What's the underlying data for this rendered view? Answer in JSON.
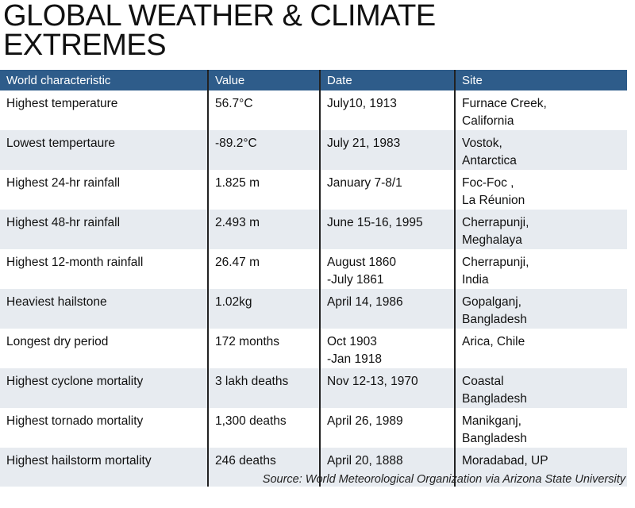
{
  "title": {
    "line1": "GLOBAL WEATHER & CLIMATE",
    "line2": "EXTREMES"
  },
  "table": {
    "headers": [
      "World characteristic",
      "Value",
      "Date",
      "Site"
    ],
    "rows": [
      {
        "characteristic": "Highest temperature",
        "value": "56.7°C",
        "date": [
          "July10, 1913"
        ],
        "site": [
          "Furnace Creek,",
          "California"
        ]
      },
      {
        "characteristic": "Lowest tempertaure",
        "value": "-89.2°C",
        "date": [
          "July 21, 1983"
        ],
        "site": [
          "Vostok,",
          "Antarctica"
        ]
      },
      {
        "characteristic": "Highest 24-hr rainfall",
        "value": "1.825 m",
        "date": [
          "January 7-8/1"
        ],
        "site": [
          "Foc-Foc ,",
          "La Réunion"
        ]
      },
      {
        "characteristic": "Highest 48-hr rainfall",
        "value": "2.493 m",
        "date": [
          "June 15-16, 1995"
        ],
        "site": [
          "Cherrapunji,",
          "Meghalaya"
        ]
      },
      {
        "characteristic": "Highest 12-month rainfall",
        "value": "26.47 m",
        "date": [
          "August 1860",
          "-July 1861"
        ],
        "site": [
          "Cherrapunji,",
          "India"
        ]
      },
      {
        "characteristic": "Heaviest hailstone",
        "value": "1.02kg",
        "date": [
          "April 14, 1986"
        ],
        "site": [
          "Gopalganj,",
          "Bangladesh"
        ]
      },
      {
        "characteristic": "Longest dry period",
        "value": "172 months",
        "date": [
          "Oct 1903",
          "-Jan 1918"
        ],
        "site": [
          "Arica, Chile"
        ]
      },
      {
        "characteristic": "Highest cyclone mortality",
        "value": "3 lakh deaths",
        "date": [
          "Nov 12-13, 1970"
        ],
        "site": [
          "Coastal",
          "Bangladesh"
        ]
      },
      {
        "characteristic": "Highest tornado mortality",
        "value": "1,300 deaths",
        "date": [
          "April 26, 1989"
        ],
        "site": [
          "Manikganj,",
          "Bangladesh"
        ]
      },
      {
        "characteristic": "Highest hailstorm mortality",
        "value": "246 deaths",
        "date": [
          "April 20, 1888"
        ],
        "site": [
          "Moradabad, UP"
        ]
      }
    ]
  },
  "source": "Source: World Meteorological Organization via Arizona State University",
  "colors": {
    "header_bg": "#2e5c8a",
    "band_bg": "#e7ebf0"
  }
}
